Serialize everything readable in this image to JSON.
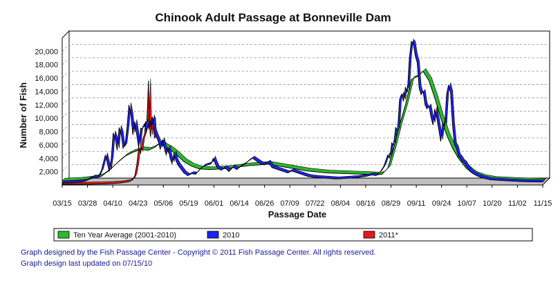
{
  "chart_data": {
    "type": "area",
    "title": "Chinook Adult Passage at Bonneville Dam",
    "xlabel": "Passage Date",
    "ylabel": "Number of Fish",
    "x_ticks": [
      "03/15",
      "03/28",
      "04/10",
      "04/23",
      "05/06",
      "05/19",
      "06/01",
      "06/14",
      "06/26",
      "07/09",
      "07/22",
      "08/04",
      "08/16",
      "08/29",
      "09/11",
      "09/24",
      "10/07",
      "10/20",
      "11/02",
      "11/15"
    ],
    "y_ticks": [
      "2,000",
      "4,000",
      "6,000",
      "8,000",
      "10,000",
      "12,000",
      "14,000",
      "16,000",
      "18,000",
      "20,000"
    ],
    "ylim": [
      0,
      22000
    ],
    "x_range_days": [
      0,
      245
    ],
    "grid": true,
    "legend_position": "bottom",
    "series": [
      {
        "name": "Ten Year Average (2001-2010)",
        "color": "#2db82d",
        "points": [
          [
            0,
            600
          ],
          [
            8,
            700
          ],
          [
            14,
            900
          ],
          [
            20,
            1300
          ],
          [
            24,
            2200
          ],
          [
            28,
            3300
          ],
          [
            32,
            4300
          ],
          [
            36,
            4900
          ],
          [
            40,
            5300
          ],
          [
            44,
            5200
          ],
          [
            47,
            5600
          ],
          [
            50,
            6300
          ],
          [
            52,
            5800
          ],
          [
            55,
            5300
          ],
          [
            58,
            4600
          ],
          [
            62,
            3500
          ],
          [
            66,
            2800
          ],
          [
            70,
            2400
          ],
          [
            76,
            2300
          ],
          [
            85,
            2500
          ],
          [
            95,
            2900
          ],
          [
            105,
            3100
          ],
          [
            115,
            2600
          ],
          [
            125,
            2100
          ],
          [
            135,
            1800
          ],
          [
            145,
            1700
          ],
          [
            155,
            1600
          ],
          [
            160,
            1500
          ],
          [
            163,
            1600
          ],
          [
            166,
            2500
          ],
          [
            169,
            5500
          ],
          [
            172,
            9000
          ],
          [
            175,
            12000
          ],
          [
            178,
            15800
          ],
          [
            181,
            16200
          ],
          [
            184,
            17000
          ],
          [
            187,
            15600
          ],
          [
            190,
            13000
          ],
          [
            193,
            10000
          ],
          [
            196,
            7500
          ],
          [
            199,
            5500
          ],
          [
            202,
            4000
          ],
          [
            206,
            2500
          ],
          [
            210,
            1600
          ],
          [
            215,
            1100
          ],
          [
            220,
            850
          ],
          [
            230,
            700
          ],
          [
            245,
            550
          ]
        ]
      },
      {
        "name": "2010",
        "color": "#2222ee",
        "points": [
          [
            0,
            300
          ],
          [
            7,
            350
          ],
          [
            12,
            600
          ],
          [
            16,
            1200
          ],
          [
            18,
            1000
          ],
          [
            20,
            2200
          ],
          [
            22,
            4500
          ],
          [
            24,
            2000
          ],
          [
            25,
            4000
          ],
          [
            26,
            7800
          ],
          [
            27,
            7000
          ],
          [
            28,
            5200
          ],
          [
            29,
            8600
          ],
          [
            30,
            7800
          ],
          [
            31,
            5500
          ],
          [
            32,
            6000
          ],
          [
            33,
            8500
          ],
          [
            34,
            12000
          ],
          [
            35,
            10500
          ],
          [
            36,
            7500
          ],
          [
            37,
            9500
          ],
          [
            38,
            7500
          ],
          [
            39,
            5500
          ],
          [
            40,
            8500
          ],
          [
            41,
            8400
          ],
          [
            42,
            9200
          ],
          [
            43,
            8000
          ],
          [
            44,
            9300
          ],
          [
            45,
            8800
          ],
          [
            46,
            10200
          ],
          [
            47,
            8000
          ],
          [
            48,
            7200
          ],
          [
            49,
            6500
          ],
          [
            50,
            5300
          ],
          [
            51,
            6800
          ],
          [
            52,
            5600
          ],
          [
            53,
            4500
          ],
          [
            54,
            5600
          ],
          [
            55,
            4000
          ],
          [
            56,
            3200
          ],
          [
            57,
            4800
          ],
          [
            58,
            3600
          ],
          [
            59,
            3000
          ],
          [
            60,
            2600
          ],
          [
            62,
            1800
          ],
          [
            64,
            1400
          ],
          [
            66,
            1700
          ],
          [
            68,
            1600
          ],
          [
            70,
            2300
          ],
          [
            72,
            2800
          ],
          [
            74,
            3000
          ],
          [
            76,
            3200
          ],
          [
            77,
            4000
          ],
          [
            78,
            3200
          ],
          [
            79,
            2600
          ],
          [
            81,
            2200
          ],
          [
            83,
            2600
          ],
          [
            85,
            2000
          ],
          [
            87,
            2700
          ],
          [
            89,
            2300
          ],
          [
            91,
            2800
          ],
          [
            93,
            3100
          ],
          [
            95,
            3600
          ],
          [
            97,
            4000
          ],
          [
            99,
            3600
          ],
          [
            101,
            3200
          ],
          [
            103,
            3000
          ],
          [
            105,
            3400
          ],
          [
            107,
            2600
          ],
          [
            109,
            2400
          ],
          [
            111,
            2200
          ],
          [
            113,
            2000
          ],
          [
            115,
            1800
          ],
          [
            117,
            2100
          ],
          [
            119,
            1900
          ],
          [
            121,
            1700
          ],
          [
            123,
            1500
          ],
          [
            125,
            1300
          ],
          [
            127,
            1200
          ],
          [
            130,
            1100
          ],
          [
            135,
            1000
          ],
          [
            140,
            900
          ],
          [
            145,
            1000
          ],
          [
            150,
            1100
          ],
          [
            155,
            1300
          ],
          [
            158,
            1500
          ],
          [
            160,
            1400
          ],
          [
            162,
            1900
          ],
          [
            164,
            2800
          ],
          [
            166,
            4500
          ],
          [
            167,
            4000
          ],
          [
            168,
            6300
          ],
          [
            169,
            6000
          ],
          [
            170,
            8600
          ],
          [
            171,
            8200
          ],
          [
            172,
            12800
          ],
          [
            173,
            13600
          ],
          [
            174,
            12500
          ],
          [
            175,
            14600
          ],
          [
            176,
            13900
          ],
          [
            177,
            19000
          ],
          [
            178,
            21500
          ],
          [
            179,
            21200
          ],
          [
            180,
            19300
          ],
          [
            181,
            18300
          ],
          [
            182,
            14500
          ],
          [
            183,
            13500
          ],
          [
            184,
            14000
          ],
          [
            185,
            12000
          ],
          [
            186,
            11400
          ],
          [
            187,
            11800
          ],
          [
            188,
            10200
          ],
          [
            189,
            9000
          ],
          [
            190,
            11400
          ],
          [
            191,
            10000
          ],
          [
            192,
            8300
          ],
          [
            193,
            6500
          ],
          [
            194,
            9300
          ],
          [
            195,
            8800
          ],
          [
            196,
            13600
          ],
          [
            197,
            15000
          ],
          [
            198,
            13800
          ],
          [
            199,
            9000
          ],
          [
            200,
            6000
          ],
          [
            201,
            5500
          ],
          [
            202,
            4300
          ],
          [
            203,
            4000
          ],
          [
            204,
            3500
          ],
          [
            205,
            3300
          ],
          [
            206,
            2800
          ],
          [
            207,
            2500
          ],
          [
            208,
            2000
          ],
          [
            210,
            1600
          ],
          [
            212,
            1300
          ],
          [
            215,
            1000
          ],
          [
            218,
            800
          ],
          [
            222,
            700
          ],
          [
            228,
            600
          ],
          [
            235,
            500
          ],
          [
            245,
            450
          ]
        ]
      },
      {
        "name": "2011*",
        "color": "#e01b1b",
        "points": [
          [
            0,
            100
          ],
          [
            15,
            120
          ],
          [
            20,
            150
          ],
          [
            25,
            200
          ],
          [
            30,
            300
          ],
          [
            34,
            500
          ],
          [
            36,
            800
          ],
          [
            37,
            1400
          ],
          [
            38,
            3000
          ],
          [
            39,
            5500
          ],
          [
            40,
            4800
          ],
          [
            41,
            6800
          ],
          [
            42,
            7600
          ],
          [
            42.5,
            9500
          ],
          [
            43,
            8800
          ],
          [
            43.5,
            11800
          ],
          [
            44,
            15600
          ],
          [
            44.5,
            9000
          ],
          [
            45,
            7200
          ],
          [
            45.5,
            8500
          ],
          [
            46,
            9500
          ],
          [
            46.5,
            9800
          ],
          [
            47,
            7000
          ]
        ]
      }
    ]
  },
  "legend": {
    "items": [
      {
        "label": "Ten Year Average (2001-2010)",
        "color": "#2db82d"
      },
      {
        "label": "2010",
        "color": "#2222ee"
      },
      {
        "label": "2011*",
        "color": "#e01b1b"
      }
    ]
  },
  "footer": {
    "line1": "Graph designed by the Fish Passage Center - Copyright © 2011 Fish Passage Center. All rights reserved.",
    "line2": "Graph design last updated on 07/15/10"
  }
}
